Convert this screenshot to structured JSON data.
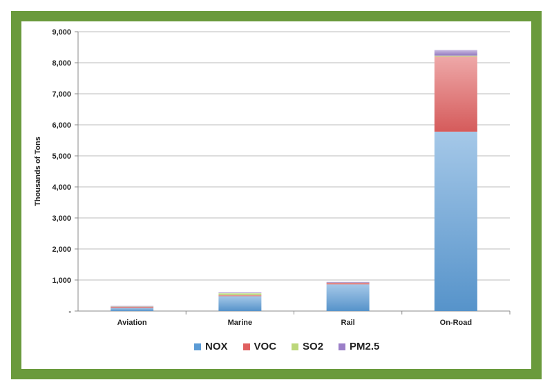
{
  "chart_data": {
    "type": "bar",
    "stacked": true,
    "title": "",
    "xlabel": "",
    "ylabel": "Thousands of Tons",
    "ylim": [
      0,
      9000
    ],
    "yticks": [
      "-",
      "1,000",
      "2,000",
      "3,000",
      "4,000",
      "5,000",
      "6,000",
      "7,000",
      "8,000",
      "9,000"
    ],
    "categories": [
      "Aviation",
      "Marine",
      "Rail",
      "On-Road"
    ],
    "series": [
      {
        "name": "NOX",
        "color": "#5b9bd5",
        "values": [
          100,
          480,
          860,
          5780
        ]
      },
      {
        "name": "VOC",
        "color": "#e06060",
        "values": [
          40,
          30,
          50,
          2420
        ]
      },
      {
        "name": "SO2",
        "color": "#bcd77a",
        "values": [
          10,
          70,
          5,
          30
        ]
      },
      {
        "name": "PM2.5",
        "color": "#9b7fc8",
        "values": [
          15,
          20,
          25,
          180
        ]
      }
    ],
    "grid": true,
    "legend_position": "bottom"
  }
}
